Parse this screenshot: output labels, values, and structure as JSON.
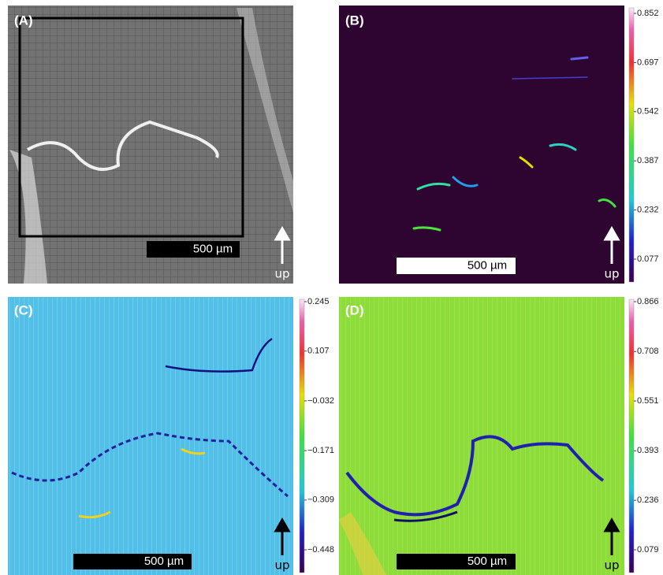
{
  "panels": [
    {
      "label": "(A)",
      "scale_bar": "500 µm",
      "direction": "up"
    },
    {
      "label": "(B)",
      "scale_bar": "500 µm",
      "direction": "up",
      "colorbar": {
        "ticks": [
          0.852,
          0.697,
          0.542,
          0.387,
          0.232,
          0.077
        ]
      }
    },
    {
      "label": "(C)",
      "scale_bar": "500 µm",
      "direction": "up",
      "colorbar": {
        "ticks": [
          0.245,
          0.107,
          {
            "value": -0.032,
            "label": "−0.032"
          },
          {
            "value": -0.171,
            "label": "−0.171"
          },
          {
            "value": -0.309,
            "label": "−0.309"
          },
          {
            "value": -0.448,
            "label": "−0.448"
          }
        ]
      }
    },
    {
      "label": "(D)",
      "scale_bar": "500 µm",
      "direction": "up",
      "colorbar": {
        "ticks": [
          0.866,
          0.708,
          0.551,
          0.393,
          0.236,
          0.079
        ]
      }
    }
  ]
}
